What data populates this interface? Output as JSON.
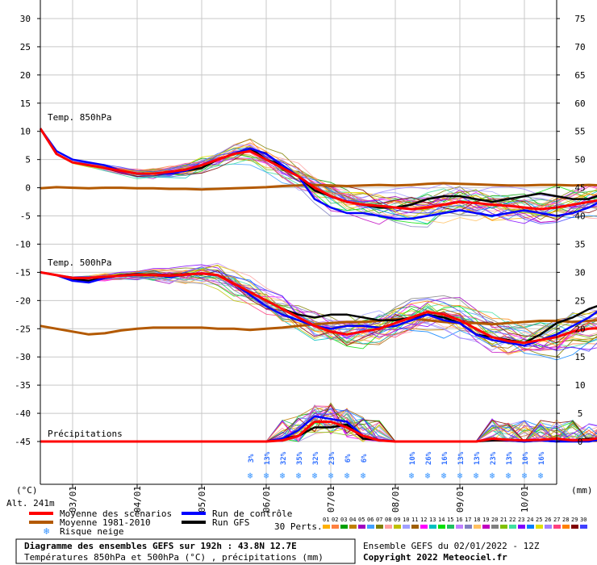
{
  "chart_data": {
    "type": "line",
    "title": "Diagramme des ensembles GEFS sur 192h : 43.8N 12.7E",
    "subtitle": "Températures 850hPa et 500hPa (°C) , précipitations (mm)",
    "left_axis": {
      "unit": "(°C)",
      "ticks": [
        30,
        25,
        20,
        15,
        10,
        5,
        0,
        -5,
        -10,
        -15,
        -20,
        -25,
        -30,
        -35,
        -40,
        -45
      ],
      "range": [
        -45,
        30
      ]
    },
    "right_axis": {
      "unit": "(mm)",
      "ticks": [
        75,
        70,
        65,
        60,
        55,
        50,
        45,
        40,
        35,
        30,
        25,
        20,
        15,
        10,
        5,
        0
      ],
      "range": [
        0,
        75
      ]
    },
    "x_axis": {
      "ticks": [
        "03/01",
        "04/01",
        "05/01",
        "06/01",
        "07/01",
        "08/01",
        "09/01",
        "10/01"
      ],
      "start_hour": 0,
      "end_hour": 192,
      "step_hours": 6
    },
    "section_labels": {
      "t850": "Temp. 850hPa",
      "t500": "Temp. 500hPa",
      "precip": "Précipitations"
    },
    "altitude": "Alt. 241m",
    "snow_risk": [
      {
        "hour": 78,
        "label": "3%"
      },
      {
        "hour": 84,
        "label": "13%"
      },
      {
        "hour": 90,
        "label": "32%"
      },
      {
        "hour": 96,
        "label": "35%"
      },
      {
        "hour": 102,
        "label": "32%"
      },
      {
        "hour": 108,
        "label": "23%"
      },
      {
        "hour": 114,
        "label": "6%"
      },
      {
        "hour": 120,
        "label": "6%"
      },
      {
        "hour": 138,
        "label": "10%"
      },
      {
        "hour": 144,
        "label": "26%"
      },
      {
        "hour": 150,
        "label": "16%"
      },
      {
        "hour": 156,
        "label": "13%"
      },
      {
        "hour": 162,
        "label": "13%"
      },
      {
        "hour": 168,
        "label": "23%"
      },
      {
        "hour": 174,
        "label": "13%"
      },
      {
        "hour": 180,
        "label": "10%"
      },
      {
        "hour": 186,
        "label": "16%"
      }
    ],
    "series": [
      {
        "name": "Moyenne des scénarios",
        "color": "#ff0000",
        "t850": [
          10.5,
          6,
          4.5,
          4,
          3.5,
          3,
          2.5,
          2.5,
          2.8,
          3.2,
          4,
          5,
          6,
          6.5,
          5,
          3.5,
          2,
          0,
          -1.5,
          -2.5,
          -3,
          -3.2,
          -3.5,
          -3.8,
          -3.5,
          -3,
          -2.5,
          -2.7,
          -3,
          -3.2,
          -3.5,
          -3.8,
          -3.5,
          -3,
          -2.5,
          -2,
          -1.5,
          -1.2,
          -1
        ],
        "t500": [
          -15,
          -15.5,
          -16,
          -16,
          -15.8,
          -15.6,
          -15.4,
          -15.5,
          -15.6,
          -15.4,
          -15.2,
          -15.5,
          -17,
          -18.5,
          -20,
          -21.5,
          -23,
          -24.5,
          -25.5,
          -26,
          -25.5,
          -25,
          -24,
          -23,
          -22,
          -22.5,
          -23.5,
          -25,
          -26.5,
          -27.2,
          -27.5,
          -27,
          -26.5,
          -25.5,
          -25,
          -24.8,
          -25,
          -25.2,
          -25.5
        ],
        "precip": [
          0,
          0,
          0,
          0,
          0,
          0,
          0,
          0,
          0,
          0,
          0,
          0,
          0,
          0,
          0,
          0.2,
          1,
          3.5,
          3.5,
          2.5,
          1,
          0.2,
          0,
          0,
          0,
          0,
          0,
          0,
          0.5,
          0.3,
          0.2,
          0.3,
          0.5,
          0.2,
          0.3,
          0.8,
          1.5,
          1.2,
          0
        ]
      },
      {
        "name": "Moyenne 1981-2010",
        "color": "#b35900",
        "t850": [
          -0.1,
          0.1,
          0,
          -0.1,
          0,
          0,
          -0.1,
          -0.1,
          -0.2,
          -0.2,
          -0.3,
          -0.2,
          -0.1,
          0,
          0.1,
          0.3,
          0.4,
          0.5,
          0.4,
          0.3,
          0.4,
          0.5,
          0.4,
          0.5,
          0.7,
          0.8,
          0.7,
          0.6,
          0.5,
          0.4,
          0.4,
          0.5,
          0.5,
          0.4,
          0.5,
          0.4,
          0.5,
          0.5,
          0.5
        ],
        "t500": [
          -24.5,
          -25,
          -25.5,
          -26,
          -25.8,
          -25.3,
          -25,
          -24.8,
          -24.8,
          -24.8,
          -24.8,
          -25,
          -25,
          -25.2,
          -25,
          -24.8,
          -24.5,
          -24.2,
          -24,
          -23.8,
          -23.8,
          -23.6,
          -23.3,
          -23.2,
          -23.5,
          -23.8,
          -24,
          -24,
          -24.2,
          -24,
          -23.8,
          -23.6,
          -23.6,
          -23.8,
          -23.6,
          -23.4,
          -23.4,
          -23.5,
          -23.6
        ]
      },
      {
        "name": "Run de contrôle",
        "color": "#0000ff",
        "t850": [
          10.5,
          6.5,
          5,
          4.5,
          4,
          3,
          2.5,
          2.5,
          2.5,
          3,
          4,
          5,
          6,
          7,
          6,
          4,
          2,
          -2,
          -3.5,
          -4.5,
          -4.5,
          -5,
          -5.5,
          -5.5,
          -5,
          -4.5,
          -4,
          -4.5,
          -5,
          -4.5,
          -4,
          -4.5,
          -5,
          -4.5,
          -3.5,
          -2,
          0,
          2,
          2.5
        ],
        "t500": [
          -15,
          -15.5,
          -16.5,
          -16.8,
          -16,
          -15.5,
          -15.5,
          -15.5,
          -15.8,
          -15.4,
          -15.2,
          -15.5,
          -17,
          -19,
          -21,
          -22.5,
          -23.5,
          -24.5,
          -25,
          -24.5,
          -24.5,
          -24.8,
          -24.5,
          -23.5,
          -22.5,
          -23.5,
          -24,
          -26,
          -27,
          -27.5,
          -28,
          -27,
          -26,
          -24.5,
          -23,
          -21,
          -20.5,
          -20,
          -19.5
        ],
        "precip": [
          0,
          0,
          0,
          0,
          0,
          0,
          0,
          0,
          0,
          0,
          0,
          0,
          0,
          0,
          0,
          0.5,
          2,
          4.5,
          4,
          3.5,
          1,
          0.3,
          0,
          0,
          0,
          0,
          0,
          0,
          0.5,
          0.2,
          0,
          0.2,
          0,
          0,
          0,
          0.5,
          1,
          2,
          0
        ]
      },
      {
        "name": "Run GFS",
        "color": "#000000",
        "t850": [
          10.5,
          6,
          4.5,
          4,
          3.5,
          3,
          2.5,
          2.5,
          2.6,
          3,
          3.5,
          5,
          6,
          7,
          5,
          4,
          2,
          -0.5,
          -1.5,
          -2.5,
          -3,
          -3.5,
          -3.5,
          -3,
          -2,
          -1.5,
          -1.5,
          -2,
          -2.5,
          -2,
          -1.5,
          -1,
          -1.5,
          -2,
          -2,
          -1,
          0,
          1.5,
          3
        ],
        "t500": [
          -15,
          -15.5,
          -16.2,
          -16.5,
          -16,
          -15.5,
          -15.3,
          -15.5,
          -15.8,
          -15.4,
          -15.2,
          -15.5,
          -17,
          -18.5,
          -20,
          -21.5,
          -22.5,
          -23,
          -22.5,
          -22.5,
          -23,
          -23.5,
          -23.5,
          -23,
          -22.5,
          -23,
          -24,
          -26,
          -26.5,
          -27,
          -27.5,
          -26,
          -24,
          -23,
          -21.5,
          -20.5,
          -20,
          -21,
          -20
        ],
        "precip": [
          0,
          0,
          0,
          0,
          0,
          0,
          0,
          0,
          0,
          0,
          0,
          0,
          0,
          0,
          0,
          0.5,
          1,
          2.5,
          2.5,
          3,
          0.5,
          0.3,
          0,
          0,
          0,
          0,
          0,
          0,
          0.2,
          0.2,
          0,
          0.2,
          0,
          0.2,
          0.5,
          0.5,
          1.5,
          2,
          0
        ]
      }
    ],
    "perturbations": {
      "label": "30 Perts.",
      "count": 30,
      "colors": [
        "#ffb000",
        "#ff8040",
        "#00a000",
        "#c08000",
        "#a000c0",
        "#40a0ff",
        "#808000",
        "#ffa0a0",
        "#c0c000",
        "#a0a0ff",
        "#a06000",
        "#ff00ff",
        "#00c0c0",
        "#00e000",
        "#20c060",
        "#c080ff",
        "#8080c0",
        "#ffc060",
        "#c000c0",
        "#808080",
        "#80c000",
        "#40e0a0",
        "#8000ff",
        "#0080ff",
        "#e0e000",
        "#a080ff",
        "#ff4080",
        "#ff8000",
        "#800000",
        "#4040ff"
      ]
    }
  },
  "legend": {
    "mean": "Moyenne des scénarios",
    "clim": "Moyenne 1981-2010",
    "snow": "Risque neige",
    "control": "Run de contrôle",
    "gfs": "Run GFS",
    "perts": "30 Perts.",
    "pert_numbers": [
      "01",
      "02",
      "03",
      "04",
      "05",
      "06",
      "07",
      "08",
      "09",
      "10",
      "11",
      "12",
      "13",
      "14",
      "15",
      "16",
      "17",
      "18",
      "19",
      "20",
      "21",
      "22",
      "23",
      "24",
      "25",
      "26",
      "27",
      "28",
      "29",
      "30"
    ]
  },
  "footer": {
    "title": "Diagramme des ensembles GEFS sur 192h : 43.8N 12.7E",
    "subtitle": "Températures 850hPa et 500hPa (°C) , précipitations (mm)",
    "run": "Ensemble GEFS du 02/01/2022 - 12Z",
    "copyright": "Copyright 2022 Meteociel.fr"
  }
}
